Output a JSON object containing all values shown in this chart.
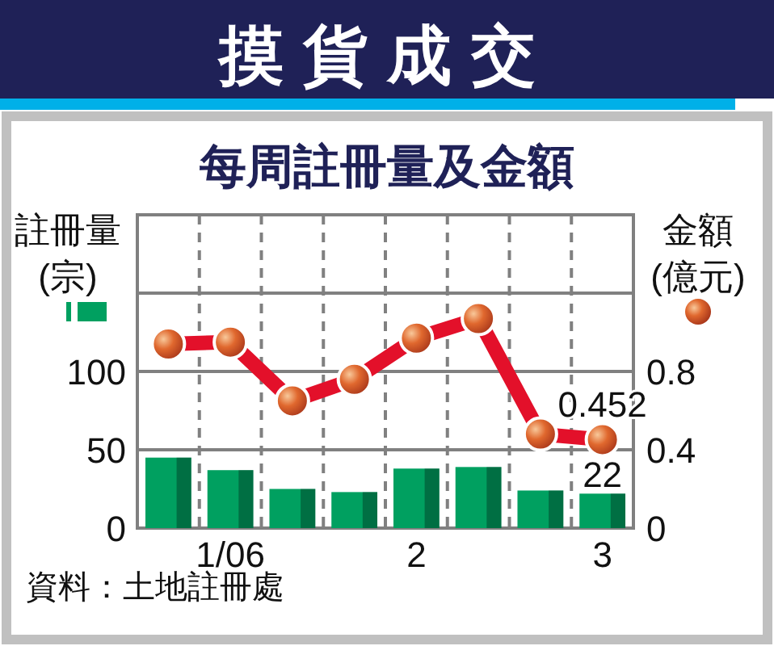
{
  "chart_data": {
    "type": "bar",
    "title": "摸貨成交",
    "subtitle": "每周註冊量及金額",
    "ylabel": "註冊量\n(宗)",
    "y2label": "金額\n(億元)",
    "categories": [
      null,
      "1/06",
      null,
      null,
      "2",
      null,
      null,
      "3"
    ],
    "ylim": [
      0,
      200
    ],
    "yticks": [
      0,
      50,
      100
    ],
    "y2lim": [
      0,
      1.6
    ],
    "y2ticks": [
      0,
      0.4,
      0.8
    ],
    "grid": true,
    "series": [
      {
        "color": "#00a060",
        "values": [
          45,
          37,
          25,
          23,
          38,
          39,
          24,
          22
        ],
        "value_labels": [
          null,
          null,
          null,
          null,
          null,
          null,
          null,
          "22"
        ]
      },
      {
        "type": "line",
        "axis": "y2",
        "color": "#e3102a",
        "marker": "circle",
        "values": [
          0.94,
          0.95,
          0.65,
          0.76,
          0.97,
          1.07,
          0.48,
          0.452
        ],
        "value_labels": [
          null,
          null,
          null,
          null,
          null,
          null,
          null,
          "0.452"
        ]
      }
    ],
    "annotations": [
      "資料：土地註冊處"
    ]
  }
}
